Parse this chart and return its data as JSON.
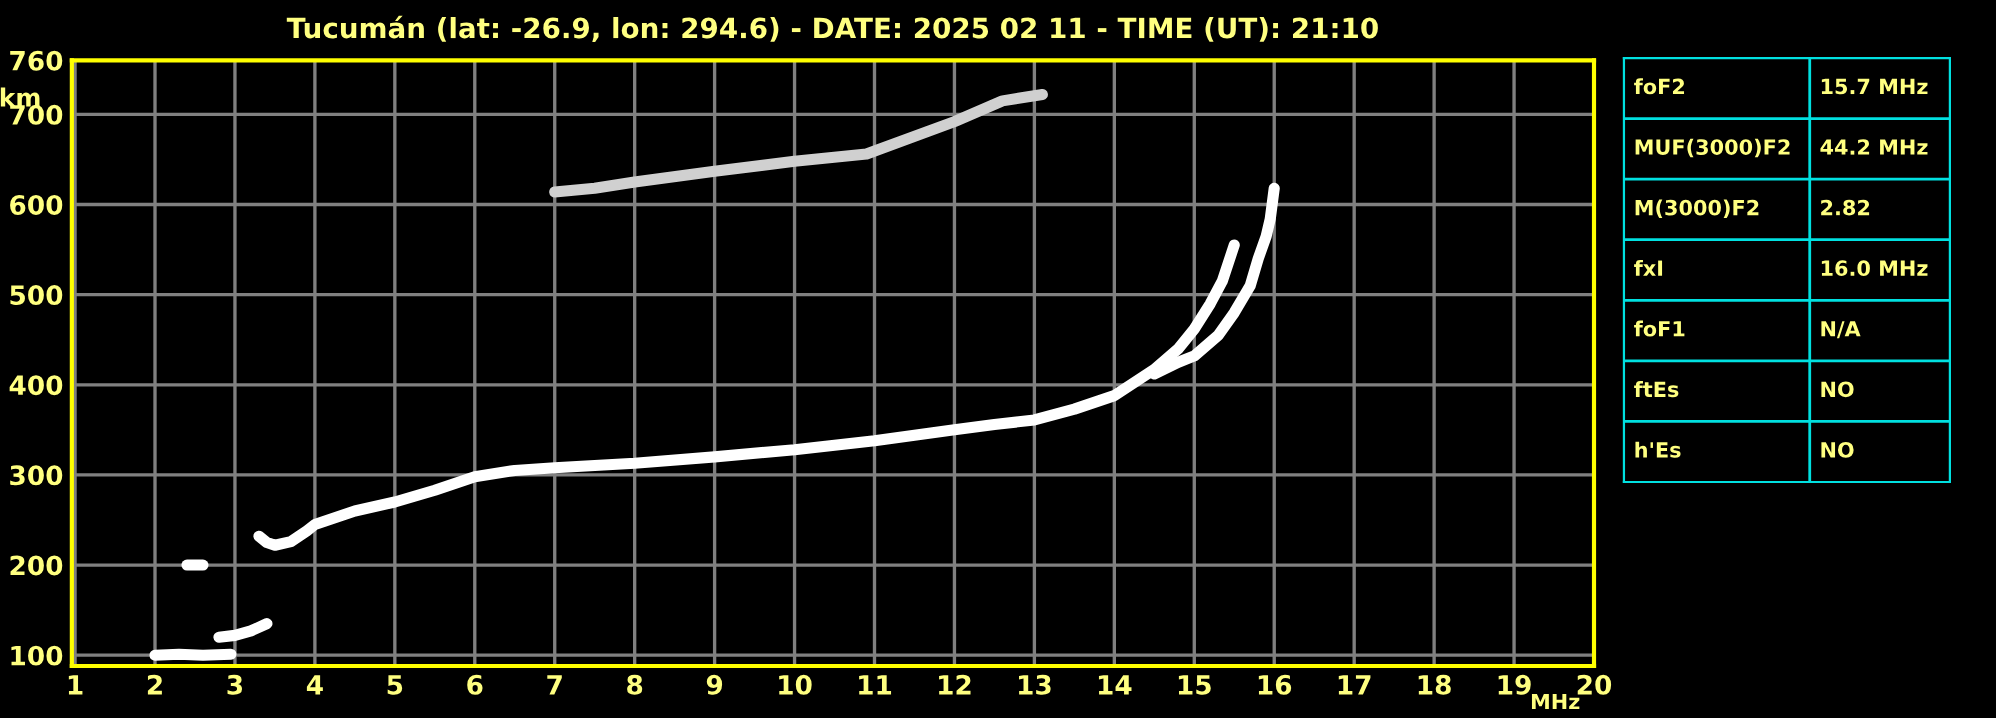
{
  "chart_data": [
    {
      "type": "line",
      "title": "Tucumán (lat: -26.9, lon: 294.6) - DATE: 2025 02 11 - TIME (UT): 21:10",
      "xlabel": "MHz",
      "ylabel": "km",
      "xlim": [
        0.96,
        20
      ],
      "xticks": [
        1,
        2,
        3,
        4,
        5,
        6,
        7,
        8,
        9,
        10,
        11,
        12,
        13,
        14,
        15,
        16,
        17,
        18,
        19,
        20
      ],
      "ylim": [
        88,
        760
      ],
      "yticks": [
        100,
        200,
        300,
        400,
        500,
        600,
        700,
        760
      ],
      "grid": true,
      "series": [
        {
          "color": "#ffffff",
          "x": [
            3.3,
            3.4,
            3.5,
            3.7,
            3.9,
            4.0,
            4.5,
            5.0,
            5.5,
            6.0,
            6.5,
            7.0,
            8.0,
            9.0,
            10.0,
            11.0,
            12.0,
            12.5,
            13.0,
            13.5,
            14.0,
            14.5,
            14.8,
            15.0,
            15.2,
            15.35,
            15.5
          ],
          "values": [
            232,
            225,
            222,
            226,
            238,
            245,
            260,
            270,
            283,
            298,
            305,
            308,
            313,
            320,
            328,
            338,
            350,
            356,
            361,
            373,
            388,
            417,
            440,
            462,
            490,
            515,
            555
          ]
        },
        {
          "color": "#ffffff",
          "x": [
            14.5,
            14.8,
            15.0,
            15.3,
            15.5,
            15.7,
            15.8,
            15.9,
            15.95,
            16.0
          ],
          "values": [
            412,
            425,
            432,
            455,
            480,
            510,
            540,
            565,
            584,
            618
          ]
        },
        {
          "color": "#ffffff",
          "x": [
            2.0,
            2.3,
            2.6,
            2.95
          ],
          "values": [
            100,
            101,
            100,
            101
          ]
        },
        {
          "color": "#ffffff",
          "x": [
            2.8,
            3.0,
            3.2,
            3.4
          ],
          "values": [
            120,
            122,
            127,
            135
          ]
        },
        {
          "color": "#ffffff",
          "x": [
            2.4,
            2.6
          ],
          "values": [
            200,
            200
          ]
        },
        {
          "color": "#d0d0d0",
          "x": [
            7.0,
            7.5,
            8.0,
            9.0,
            10.0,
            10.9,
            12.0,
            12.6,
            13.1
          ],
          "values": [
            614,
            618,
            625,
            637,
            648,
            656,
            692,
            715,
            722
          ]
        }
      ]
    },
    {
      "type": "other",
      "annotations": [
        "foF2",
        "15.7 MHz",
        "MUF(3000)F2",
        "44.2 MHz",
        "M(3000)F2",
        "2.82",
        "fxI",
        "16.0 MHz",
        "foF1",
        "N/A",
        "ftEs",
        "NO",
        "h'Es",
        "NO"
      ]
    }
  ]
}
